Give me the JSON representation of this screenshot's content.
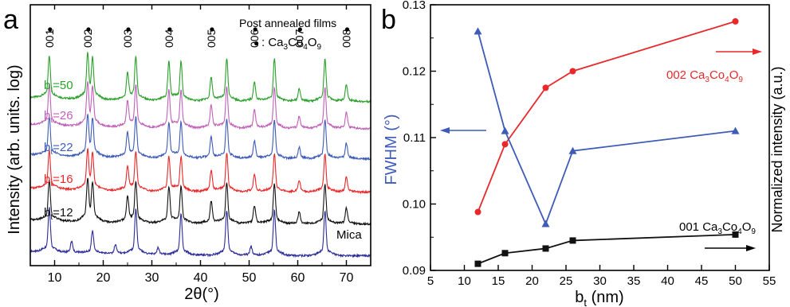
{
  "chart_data": [
    {
      "panel_label": "a",
      "type": "line",
      "xlabel_main": "2θ(°)",
      "ylabel": "Intensity (arb. units. log)",
      "xlim": [
        5,
        75
      ],
      "xticks": [
        "10",
        "20",
        "30",
        "40",
        "50",
        "60",
        "70"
      ],
      "y_scale": "log",
      "legend_title": "Post annealed films",
      "legend_entry_marker": "●",
      "legend_entry_text_main": ": Ca",
      "legend_entry_parts": [
        "3",
        "Co",
        "4",
        "O",
        "9"
      ],
      "peak_labels": [
        {
          "text": "001",
          "two_theta": 8.9
        },
        {
          "text": "002",
          "two_theta": 16.8
        },
        {
          "text": "003",
          "two_theta": 25.0
        },
        {
          "text": "004",
          "two_theta": 33.5
        },
        {
          "text": "005",
          "two_theta": 42.2
        },
        {
          "text": "006",
          "two_theta": 51.1
        },
        {
          "text": "007",
          "two_theta": 60.3
        },
        {
          "text": "008",
          "two_theta": 70.0
        }
      ],
      "series": [
        {
          "name_main": "b",
          "name_sub": "t",
          "name_value": "=50",
          "color": "#2ca02c"
        },
        {
          "name_main": "b",
          "name_sub": "t",
          "name_value": "=26",
          "color": "#c061b8"
        },
        {
          "name_main": "b",
          "name_sub": "t",
          "name_value": "=22",
          "color": "#3e5bb7"
        },
        {
          "name_main": "b",
          "name_sub": "t",
          "name_value": "=16",
          "color": "#e8282a"
        },
        {
          "name_main": "b",
          "name_sub": "t",
          "name_value": "=12",
          "color": "#111111"
        },
        {
          "name": "Mica",
          "color": "#2b2b9a"
        }
      ]
    },
    {
      "panel_label": "b",
      "type": "line",
      "xlabel_main": "b",
      "xlabel_sub": "t",
      "xlabel_unit": " (nm)",
      "ylabel_left": "FWHM (°)",
      "ylabel_right": "Normalized intensity (a.u.)",
      "xlim": [
        5,
        55
      ],
      "xticks": [
        "5",
        "10",
        "15",
        "20",
        "25",
        "30",
        "35",
        "40",
        "45",
        "50",
        "55"
      ],
      "ylim_left": [
        0.09,
        0.13
      ],
      "yticks_left": [
        "0.09",
        "0.10",
        "0.11",
        "0.12",
        "0.13"
      ],
      "series": [
        {
          "name_parts": [
            "002 Ca",
            "3",
            "Co",
            "4",
            "O",
            "9"
          ],
          "axis": "right",
          "color": "#e8282a",
          "marker": "circle",
          "x": [
            12,
            16,
            22,
            26,
            50
          ],
          "y": [
            0.0988,
            0.109,
            0.1175,
            0.12,
            0.1275
          ]
        },
        {
          "name": "",
          "axis": "left",
          "color": "#3e5bb7",
          "marker": "triangle",
          "x": [
            12,
            16,
            22,
            26,
            50
          ],
          "y": [
            0.126,
            0.111,
            0.097,
            0.108,
            0.111
          ]
        },
        {
          "name_parts": [
            "001 Ca",
            "3",
            "Co",
            "4",
            "O",
            "9"
          ],
          "axis": "right",
          "color": "#111111",
          "marker": "square",
          "x": [
            12,
            16,
            22,
            26,
            50
          ],
          "y": [
            0.091,
            0.0926,
            0.0933,
            0.0945,
            0.0954
          ]
        }
      ]
    }
  ]
}
